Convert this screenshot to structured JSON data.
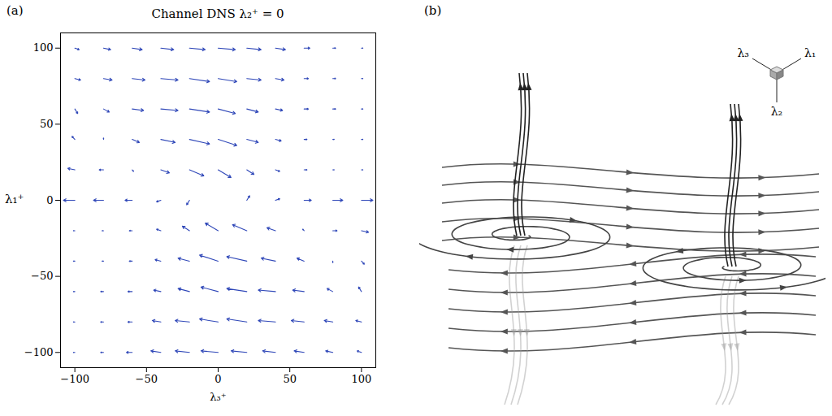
{
  "chart_data": {
    "type": "quiver",
    "panel_label": "(a)",
    "title": "Channel DNS λ₂⁺ = 0",
    "xlabel": "λ₃⁺",
    "ylabel": "λ₁⁺",
    "color": "#2f47b8",
    "xlim": [
      -110,
      110
    ],
    "ylim": [
      -110,
      110
    ],
    "xticks": [
      -100,
      -50,
      0,
      50,
      100
    ],
    "yticks": [
      -100,
      -50,
      0,
      50,
      100
    ],
    "x": [
      -100,
      -80,
      -60,
      -40,
      -20,
      0,
      20,
      40,
      60,
      80,
      100
    ],
    "y": [
      100,
      80,
      60,
      40,
      20,
      0,
      -20,
      -40,
      -60,
      -80,
      -100
    ],
    "u": [
      [
        3,
        5,
        7,
        9,
        11,
        12,
        10,
        7,
        4,
        2,
        1
      ],
      [
        4,
        6,
        9,
        12,
        14,
        13,
        10,
        6,
        3,
        2,
        1
      ],
      [
        2,
        4,
        8,
        12,
        14,
        12,
        8,
        5,
        3,
        2,
        1
      ],
      [
        -2,
        0,
        5,
        10,
        14,
        13,
        8,
        4,
        2,
        1,
        1
      ],
      [
        -5,
        -3,
        1,
        6,
        10,
        9,
        5,
        3,
        2,
        1,
        1
      ],
      [
        -8,
        -7,
        -5,
        -3,
        -2,
        0,
        2,
        3,
        5,
        7,
        8
      ],
      [
        -1,
        -1,
        -2,
        -3,
        -5,
        -9,
        -10,
        -6,
        -1,
        3,
        5
      ],
      [
        -1,
        -1,
        -2,
        -4,
        -8,
        -13,
        -14,
        -10,
        -5,
        0,
        2
      ],
      [
        -1,
        -2,
        -3,
        -5,
        -8,
        -12,
        -14,
        -12,
        -8,
        -4,
        -2
      ],
      [
        -1,
        -2,
        -3,
        -6,
        -10,
        -13,
        -14,
        -12,
        -9,
        -6,
        -4
      ],
      [
        -1,
        -2,
        -4,
        -7,
        -10,
        -12,
        -11,
        -9,
        -7,
        -5,
        -3
      ]
    ],
    "v": [
      [
        -1,
        -1,
        -1,
        -1,
        -1,
        -1,
        -1,
        -1,
        0,
        0,
        0
      ],
      [
        -1,
        -1,
        -1,
        -1,
        -2,
        -2,
        -1,
        -1,
        0,
        0,
        0
      ],
      [
        -3,
        -2,
        -1,
        -1,
        -2,
        -3,
        -2,
        -1,
        0,
        0,
        0
      ],
      [
        2,
        1,
        -2,
        -2,
        -3,
        -4,
        -2,
        -1,
        0,
        0,
        0
      ],
      [
        1,
        0,
        -1,
        -2,
        -4,
        -5,
        -3,
        -1,
        0,
        0,
        0
      ],
      [
        0,
        0,
        0,
        -1,
        -3,
        0,
        3,
        1,
        0,
        0,
        0
      ],
      [
        0,
        0,
        0,
        1,
        3,
        5,
        4,
        2,
        1,
        0,
        -1
      ],
      [
        0,
        0,
        0,
        1,
        2,
        4,
        3,
        2,
        2,
        -1,
        -2
      ],
      [
        0,
        0,
        0,
        1,
        2,
        3,
        2,
        1,
        1,
        2,
        3
      ],
      [
        0,
        0,
        0,
        1,
        1,
        2,
        2,
        1,
        1,
        1,
        1
      ],
      [
        0,
        0,
        0,
        1,
        1,
        1,
        1,
        1,
        1,
        1,
        1
      ]
    ]
  },
  "diagram": {
    "panel_label": "(b)",
    "axis_labels": {
      "lambda1": "λ₁",
      "lambda2": "λ₂",
      "lambda3": "λ₃"
    }
  }
}
